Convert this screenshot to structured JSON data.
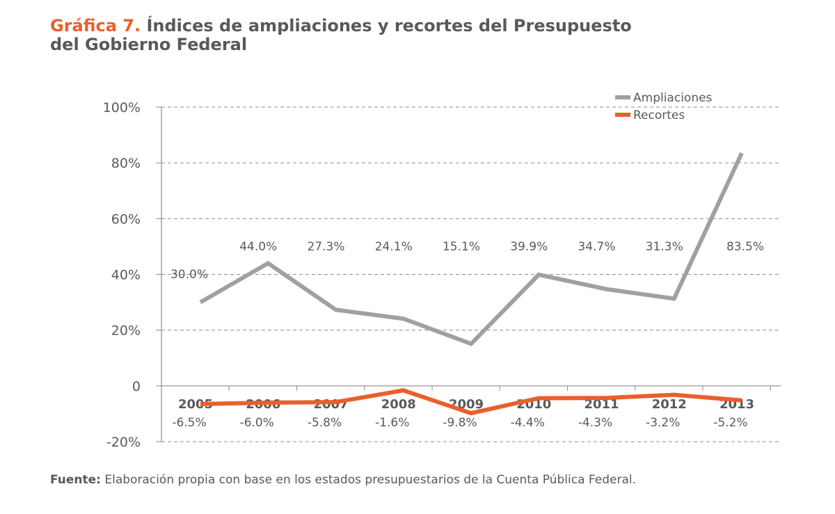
{
  "title": {
    "lead": "Gráfica 7.",
    "line1": " Índices de ampliaciones y recortes del Presupuesto",
    "line2": "del Gobierno Federal"
  },
  "source": {
    "label": "Fuente:",
    "text": " Elaboración propia con base en los estados presupuestarios de la Cuenta Pública Federal."
  },
  "colors": {
    "ampliaciones": "#a0a0a0",
    "recortes": "#e8602c",
    "text": "#595959",
    "grid": "#8c8c8c"
  },
  "chart_data": {
    "type": "line",
    "categories": [
      "2005",
      "2006",
      "2007",
      "2008",
      "2009",
      "2010",
      "2011",
      "2012",
      "2013"
    ],
    "y_ticks": [
      100,
      80,
      60,
      40,
      20,
      0,
      -20
    ],
    "y_tick_labels": [
      "100%",
      "80%",
      "60%",
      "40%",
      "20%",
      "0",
      "-20%"
    ],
    "ylim": [
      -20,
      100
    ],
    "grid": "horizontal dashed",
    "legend_position": "top-right",
    "series": [
      {
        "name": "Ampliaciones",
        "color": "#a0a0a0",
        "values": [
          30.0,
          44.0,
          27.3,
          24.1,
          15.1,
          39.9,
          34.7,
          31.3,
          83.5
        ],
        "labels": [
          "30.0%",
          "44.0%",
          "27.3%",
          "24.1%",
          "15.1%",
          "39.9%",
          "34.7%",
          "31.3%",
          "83.5%"
        ]
      },
      {
        "name": "Recortes",
        "color": "#e8602c",
        "values": [
          -6.5,
          -6.0,
          -5.8,
          -1.6,
          -9.8,
          -4.4,
          -4.3,
          -3.2,
          -5.2
        ],
        "labels": [
          "-6.5%",
          "-6.0%",
          "-5.8%",
          "-1.6%",
          "-9.8%",
          "-4.4%",
          "-4.3%",
          "-3.2%",
          "-5.2%"
        ]
      }
    ]
  }
}
